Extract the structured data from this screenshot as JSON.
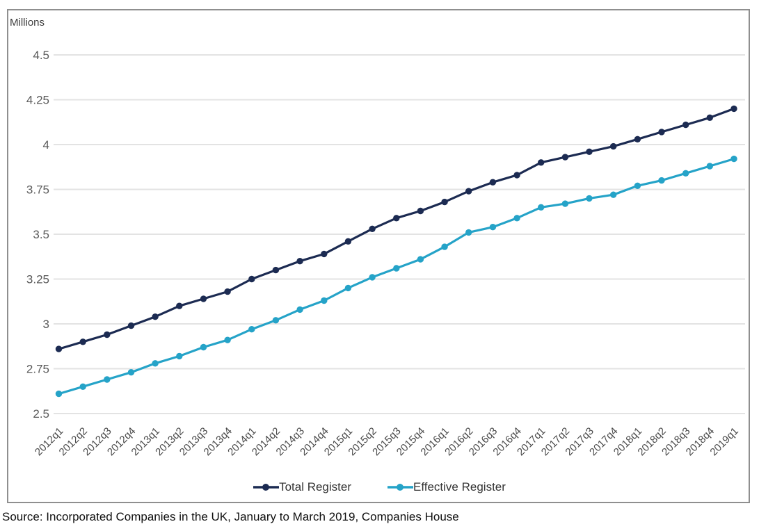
{
  "chart_data": {
    "type": "line",
    "unit_label": "Millions",
    "categories": [
      "2012q1",
      "2012q2",
      "2012q3",
      "2012q4",
      "2013q1",
      "2013q2",
      "2013q3",
      "2013q4",
      "2014q1",
      "2014q2",
      "2014q3",
      "2014q4",
      "2015q1",
      "2015q2",
      "2015q3",
      "2015q4",
      "2016q1",
      "2016q2",
      "2016q3",
      "2016q4",
      "2017q1",
      "2017q2",
      "2017q3",
      "2017q4",
      "2018q1",
      "2018q2",
      "2018q3",
      "2018q4",
      "2019q1"
    ],
    "series": [
      {
        "name": "Total Register",
        "color": "#1c2b52",
        "values": [
          2.86,
          2.9,
          2.94,
          2.99,
          3.04,
          3.1,
          3.14,
          3.18,
          3.25,
          3.3,
          3.35,
          3.39,
          3.46,
          3.53,
          3.59,
          3.63,
          3.68,
          3.74,
          3.79,
          3.83,
          3.9,
          3.93,
          3.96,
          3.99,
          4.03,
          4.07,
          4.11,
          4.15,
          4.2
        ]
      },
      {
        "name": "Effective Register",
        "color": "#25a3c8",
        "values": [
          2.61,
          2.65,
          2.69,
          2.73,
          2.78,
          2.82,
          2.87,
          2.91,
          2.97,
          3.02,
          3.08,
          3.13,
          3.2,
          3.26,
          3.31,
          3.36,
          3.43,
          3.51,
          3.54,
          3.59,
          3.65,
          3.67,
          3.7,
          3.72,
          3.77,
          3.8,
          3.84,
          3.88,
          3.92
        ]
      }
    ],
    "y_ticks": [
      4.5,
      4.25,
      4,
      3.75,
      3.5,
      3.25,
      3,
      2.75,
      2.5
    ],
    "y_tick_labels": [
      "4.5",
      "4.25",
      "4",
      "3.75",
      "3.5",
      "3.25",
      "3",
      "2.75",
      "2.5"
    ],
    "ylim": [
      2.5,
      4.5
    ],
    "grid": "horizontal",
    "legend_position": "bottom"
  },
  "source_note": "Source: Incorporated Companies in the UK, January to March 2019, Companies House",
  "colors": {
    "gridline": "#e3e3e3",
    "frame_border": "#8f8f8f",
    "y_tick_text": "#5a5a5a",
    "x_tick_text": "#4a4a4a"
  }
}
